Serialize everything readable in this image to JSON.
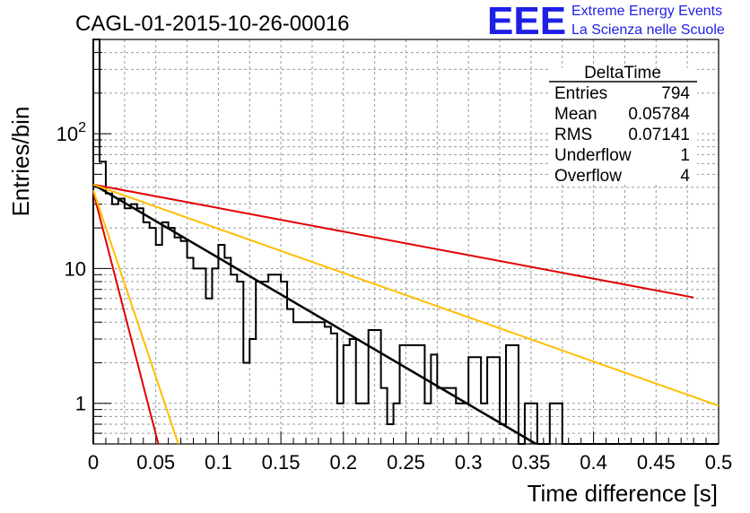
{
  "colors": {
    "histogram": "#000000",
    "fit_black": "#000000",
    "red": "#e00000",
    "orange": "#ffbf00",
    "grid": "#9a9a9a",
    "logo": "#1f1fe6"
  },
  "logo": {
    "mark": "EEE",
    "line1": "Extreme Energy Events",
    "line2": "La Scienza nelle Scuole"
  },
  "stats": {
    "name": "DeltaTime",
    "rows": [
      {
        "label": "Entries",
        "value": "794"
      },
      {
        "label": "Mean",
        "value": "0.05784"
      },
      {
        "label": "RMS",
        "value": "0.07141"
      },
      {
        "label": "Underflow",
        "value": "1"
      },
      {
        "label": "Overflow",
        "value": "4"
      }
    ]
  },
  "chart_data": {
    "type": "histogram",
    "title": "CAGL-01-2015-10-26-00016",
    "xlabel": "Time difference [s]",
    "ylabel": "Entries/bin",
    "xlim": [
      0,
      0.5
    ],
    "ylim": [
      0.5,
      500
    ],
    "yscale": "log",
    "grid": true,
    "x_ticks": [
      "0",
      "0.05",
      "0.1",
      "0.15",
      "0.2",
      "0.25",
      "0.3",
      "0.35",
      "0.4",
      "0.45",
      "0.5"
    ],
    "y_ticks": [
      "1",
      "10",
      "10^2"
    ],
    "bin_width": 0.005,
    "counts": [
      500,
      62,
      36,
      30,
      33,
      28,
      30,
      28,
      22,
      20,
      15,
      22,
      20,
      17,
      16,
      12,
      10,
      10,
      6,
      10,
      15,
      12,
      9,
      8,
      2,
      3,
      8,
      8,
      9,
      9,
      8,
      5,
      4,
      4,
      4,
      4,
      4,
      3.7,
      3.3,
      1.0,
      2.7,
      3,
      1.0,
      1.0,
      3.5,
      3.5,
      1.3,
      0.7,
      1.0,
      2.7,
      2.7,
      2.7,
      2.7,
      1.0,
      2.3,
      1.3,
      1.3,
      1.3,
      1.0,
      1.0,
      2.2,
      2.2,
      1.0,
      2.2,
      2.2,
      0.7,
      2.7,
      2.7,
      0.5,
      1.0,
      1.0,
      0.5,
      0.5,
      1.0,
      1.0,
      0.5,
      0.5,
      0.5,
      0.5,
      0.5,
      0.5,
      0.5,
      0.5,
      0.5,
      0.5,
      0.5,
      0.5,
      0.5,
      0.5,
      0.5,
      0.5,
      0.5,
      0.5,
      0.5,
      0.5,
      0.5,
      0.5,
      0.5,
      0.5,
      0.5
    ],
    "series": [
      {
        "style": "black",
        "x": [
          0,
          0.354
        ],
        "y": [
          42,
          0.5
        ]
      },
      {
        "style": "red",
        "x": [
          0,
          0.48
        ],
        "y": [
          42,
          6.1
        ]
      },
      {
        "style": "orange",
        "x": [
          0,
          0.5
        ],
        "y": [
          42,
          0.96
        ]
      },
      {
        "style": "red",
        "x": [
          0,
          0.052
        ],
        "y": [
          37,
          0.5
        ]
      },
      {
        "style": "orange",
        "x": [
          0,
          0.068
        ],
        "y": [
          38,
          0.5
        ]
      }
    ]
  }
}
